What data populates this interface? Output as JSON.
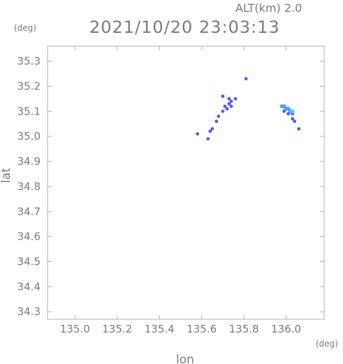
{
  "chart_data": {
    "type": "scatter",
    "title": "2021/10/20 23:03:13",
    "altitude_label": "ALT(km) 2.0",
    "xlabel": "lon",
    "ylabel": "lat",
    "x_unit": "(deg)",
    "y_unit": "(deg)",
    "xlim": [
      134.87,
      136.18
    ],
    "ylim": [
      34.27,
      35.36
    ],
    "x_ticks": [
      "135.0",
      "135.2",
      "135.4",
      "135.6",
      "135.8",
      "136.0"
    ],
    "y_ticks": [
      "34.3",
      "34.4",
      "34.5",
      "34.6",
      "34.7",
      "34.8",
      "34.9",
      "35.0",
      "35.1",
      "35.2",
      "35.3"
    ],
    "grid": false,
    "colors": {
      "echo_main": "#4a5ef0",
      "echo_light": "#50a0f0",
      "echo_cyan": "#40e0e0"
    },
    "points": [
      {
        "lon": 135.81,
        "lat": 35.23,
        "level": "main"
      },
      {
        "lon": 135.7,
        "lat": 35.16,
        "level": "main"
      },
      {
        "lon": 135.73,
        "lat": 35.15,
        "level": "main"
      },
      {
        "lon": 135.76,
        "lat": 35.15,
        "level": "main"
      },
      {
        "lon": 135.74,
        "lat": 35.14,
        "level": "main"
      },
      {
        "lon": 135.73,
        "lat": 35.13,
        "level": "main"
      },
      {
        "lon": 135.71,
        "lat": 35.12,
        "level": "main"
      },
      {
        "lon": 135.72,
        "lat": 35.11,
        "level": "main"
      },
      {
        "lon": 135.74,
        "lat": 35.12,
        "level": "main"
      },
      {
        "lon": 135.7,
        "lat": 35.1,
        "level": "main"
      },
      {
        "lon": 135.68,
        "lat": 35.08,
        "level": "main"
      },
      {
        "lon": 135.67,
        "lat": 35.06,
        "level": "main"
      },
      {
        "lon": 135.65,
        "lat": 35.03,
        "level": "main"
      },
      {
        "lon": 135.64,
        "lat": 35.02,
        "level": "main"
      },
      {
        "lon": 135.58,
        "lat": 35.01,
        "level": "main"
      },
      {
        "lon": 135.63,
        "lat": 34.99,
        "level": "main"
      },
      {
        "lon": 135.98,
        "lat": 35.12,
        "level": "light"
      },
      {
        "lon": 135.99,
        "lat": 35.12,
        "level": "light"
      },
      {
        "lon": 136.0,
        "lat": 35.11,
        "level": "light"
      },
      {
        "lon": 136.01,
        "lat": 35.11,
        "level": "light"
      },
      {
        "lon": 136.02,
        "lat": 35.1,
        "level": "light"
      },
      {
        "lon": 135.99,
        "lat": 35.1,
        "level": "main"
      },
      {
        "lon": 136.01,
        "lat": 35.09,
        "level": "main"
      },
      {
        "lon": 136.03,
        "lat": 35.09,
        "level": "main"
      },
      {
        "lon": 136.03,
        "lat": 35.07,
        "level": "main"
      },
      {
        "lon": 136.04,
        "lat": 35.06,
        "level": "main"
      },
      {
        "lon": 136.06,
        "lat": 35.03,
        "level": "main"
      },
      {
        "lon": 136.03,
        "lat": 35.1,
        "level": "cyan"
      }
    ]
  }
}
